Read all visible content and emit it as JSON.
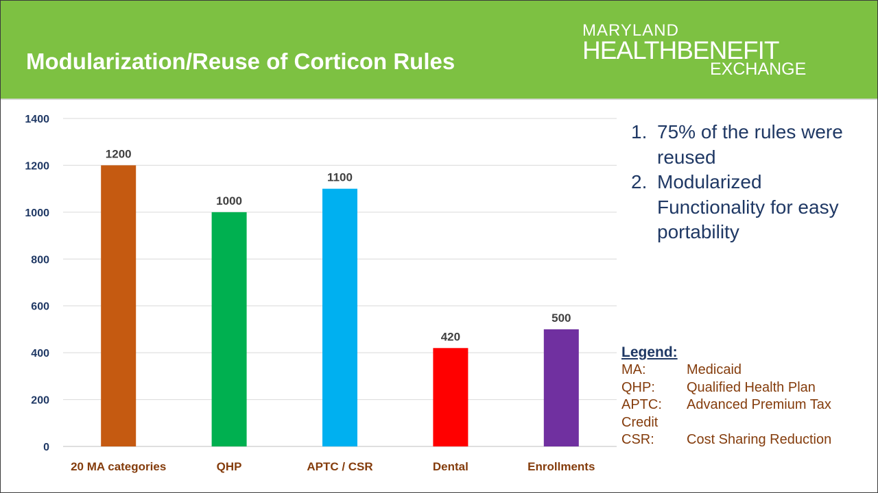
{
  "slide": {
    "title": "Modularization/Reuse of Corticon Rules",
    "logo": {
      "line1": "MARYLAND",
      "line2": "HEALTHBENEFIT",
      "line3": "EXCHANGE"
    }
  },
  "colors": {
    "header": "#7dc142",
    "title_text": "#ffffff",
    "bullet_text": "#1f3864",
    "legend_text": "#843c0c"
  },
  "points": [
    {
      "number": "1.",
      "text": "75% of the rules were reused"
    },
    {
      "number": "2.",
      "text": "Modularized Functionality for easy portability"
    }
  ],
  "legend": {
    "heading": "Legend:",
    "entries": [
      {
        "abbr": "MA:",
        "definition": "Medicaid"
      },
      {
        "abbr": "QHP:",
        "definition": "Qualified Health Plan"
      },
      {
        "abbr": "APTC:",
        "definition": "Advanced Premium Tax"
      },
      {
        "abbr": "CSR:",
        "definition": "Cost Sharing Reduction"
      }
    ],
    "continuation": "Credit"
  },
  "chart_data": {
    "type": "bar",
    "title": "",
    "xlabel": "",
    "ylabel": "",
    "categories": [
      "20 MA categories",
      "QHP",
      "APTC / CSR",
      "Dental",
      "Enrollments"
    ],
    "values": [
      1200,
      1000,
      1100,
      420,
      500
    ],
    "data_labels": [
      "1200",
      "1000",
      "1100",
      "420",
      "500"
    ],
    "colors": [
      "#c55a11",
      "#00b050",
      "#00b0f0",
      "#ff0000",
      "#7030a0"
    ],
    "ylim": [
      0,
      1400
    ],
    "yticks": [
      0,
      200,
      400,
      600,
      800,
      1000,
      1200,
      1400
    ],
    "grid": true,
    "legend": "none"
  }
}
